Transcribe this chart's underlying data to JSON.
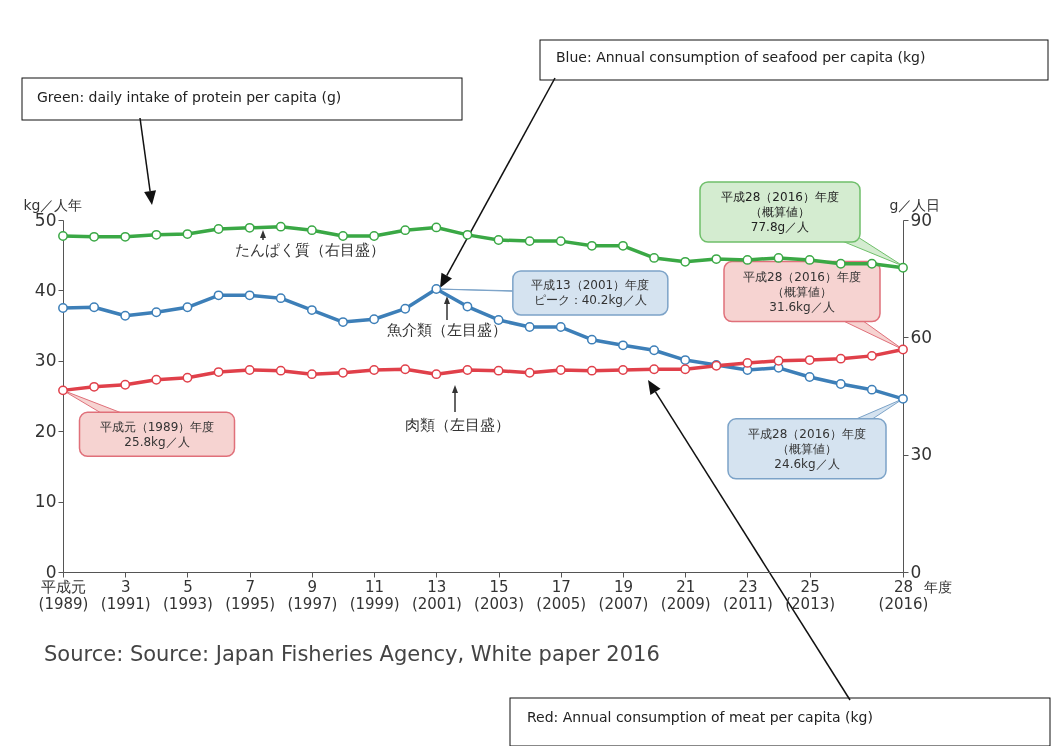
{
  "chart_data": {
    "type": "line",
    "xlabel": "年度",
    "ylabel": "kg／人年",
    "y2label": "g／人日",
    "categories": [
      "平成元\n(1989)",
      null,
      "3\n(1991)",
      null,
      "5\n(1993)",
      null,
      "7\n(1995)",
      null,
      "9\n(1997)",
      null,
      "11\n(1999)",
      null,
      "13\n(2001)",
      null,
      "15\n(2003)",
      null,
      "17\n(2005)",
      null,
      "19\n(2007)",
      null,
      "21\n(2009)",
      null,
      "23\n(2011)",
      null,
      "25\n(2013)",
      null,
      null,
      "28\n(2016)"
    ],
    "ylim": [
      0,
      50
    ],
    "yticks": [
      0,
      10,
      20,
      30,
      40,
      50
    ],
    "y2lim": [
      0,
      90
    ],
    "y2ticks": [
      0,
      30,
      60,
      90
    ],
    "series": [
      {
        "name": "魚介類（左目盛）",
        "color": "#3d7fb8",
        "values": [
          37.5,
          37.6,
          36.4,
          36.9,
          37.6,
          39.3,
          39.3,
          38.9,
          37.2,
          35.5,
          35.9,
          37.4,
          40.2,
          37.7,
          35.8,
          34.8,
          34.8,
          33.0,
          32.2,
          31.5,
          30.1,
          29.4,
          28.7,
          29.0,
          27.7,
          26.7,
          25.9,
          24.6
        ]
      },
      {
        "name": "肉類（左目盛）",
        "color": "#e0404a",
        "values": [
          25.8,
          26.3,
          26.6,
          27.3,
          27.6,
          28.4,
          28.7,
          28.6,
          28.1,
          28.3,
          28.7,
          28.8,
          28.1,
          28.7,
          28.6,
          28.3,
          28.7,
          28.6,
          28.7,
          28.8,
          28.8,
          29.3,
          29.7,
          30.0,
          30.1,
          30.3,
          30.7,
          31.6
        ]
      },
      {
        "name": "たんぱく質（右目盛）",
        "color": "#3aa845",
        "axis": "y2",
        "values": [
          85.9,
          85.7,
          85.7,
          86.2,
          86.4,
          87.7,
          88.0,
          88.3,
          87.4,
          85.9,
          85.9,
          87.4,
          88.1,
          86.2,
          84.9,
          84.6,
          84.6,
          83.4,
          83.4,
          80.3,
          79.3,
          80.0,
          79.8,
          80.3,
          79.8,
          78.8,
          78.8,
          77.8
        ]
      }
    ],
    "marker": "circle",
    "grid": false,
    "legend": false,
    "annotations": [
      "Green: daily intake of protein per capita (g)",
      "Blue: Annual consumption of seafood per capita (kg)",
      "Red: Annual consumption of meat per capita (kg)",
      "Source: Source: Japan Fisheries Agency, White paper 2016",
      {
        "text": "平成元（1989）年度25.8kg／人",
        "x": "平成元\n(1989)",
        "y": 25.8
      },
      {
        "text": "平成13（2001）年度ピーク：40.2kg／人",
        "x": "13\n(2001)",
        "y": 40.2
      },
      {
        "text": "平成28（2016）年度（概算値）31.6kg／人",
        "x": "28\n(2016)",
        "y": 31.6
      },
      {
        "text": "平成28（2016）年度（概算値）24.6kg／人",
        "x": "28\n(2016)",
        "y": 24.6
      },
      "平成28（2016）年度（概算値）77.8g／人"
    ]
  }
}
